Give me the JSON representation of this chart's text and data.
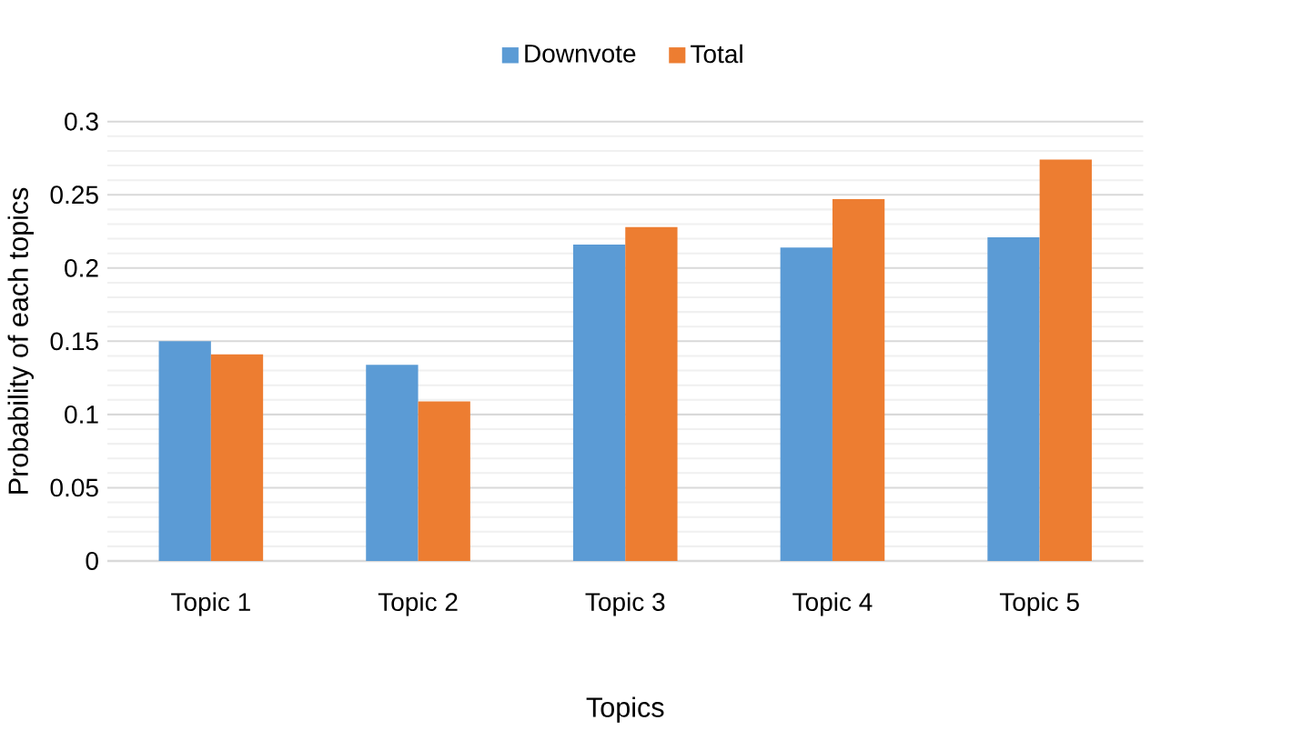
{
  "chart_data": {
    "type": "bar",
    "xlabel": "Topics",
    "ylabel": "Probability of each topics",
    "categories": [
      "Topic 1",
      "Topic 2",
      "Topic 3",
      "Topic 4",
      "Topic 5"
    ],
    "series": [
      {
        "name": "Downvote",
        "color": "#5b9bd5",
        "values": [
          0.15,
          0.134,
          0.216,
          0.214,
          0.221
        ]
      },
      {
        "name": "Total",
        "color": "#ed7d31",
        "values": [
          0.141,
          0.109,
          0.228,
          0.247,
          0.274
        ]
      }
    ],
    "ylim": [
      0,
      0.3
    ],
    "yticks": [
      0,
      0.05,
      0.1,
      0.15,
      0.2,
      0.25,
      0.3
    ],
    "grid": "y",
    "legend": "top"
  }
}
